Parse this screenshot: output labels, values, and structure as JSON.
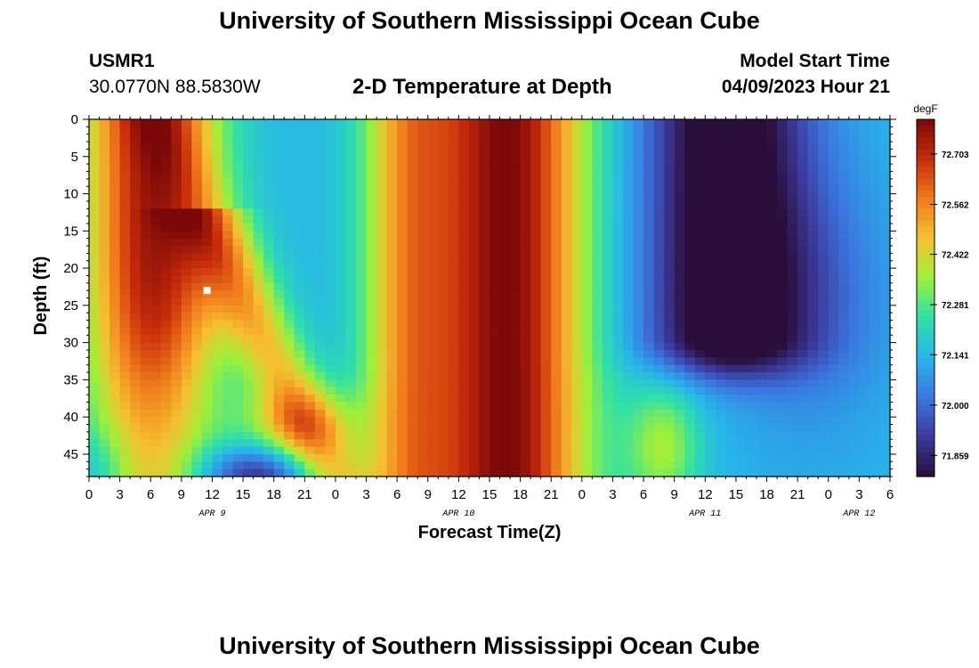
{
  "page": {
    "title": "University of Southern Mississippi Ocean Cube",
    "footer_title": "University of Southern Mississippi Ocean Cube",
    "station_id": "USMR1",
    "coords": "30.0770N  88.5830W",
    "model_start_label": "Model Start Time",
    "model_start_value": "04/09/2023 Hour 21"
  },
  "chart_data": {
    "type": "heatmap",
    "title": "2-D Temperature at Depth",
    "xlabel": "Forecast Time(Z)",
    "ylabel": "Depth (ft)",
    "x_range_hours": [
      0,
      78
    ],
    "x_tick_step_hours": 3,
    "x_tick_labels": [
      "0",
      "3",
      "6",
      "9",
      "12",
      "15",
      "18",
      "21",
      "0",
      "3",
      "6",
      "9",
      "12",
      "15",
      "18",
      "21",
      "0",
      "3",
      "6",
      "9",
      "12",
      "15",
      "18",
      "21",
      "0",
      "3",
      "6"
    ],
    "date_labels": [
      {
        "text": "APR 9",
        "hour": 12
      },
      {
        "text": "APR 10",
        "hour": 36
      },
      {
        "text": "APR 11",
        "hour": 60
      },
      {
        "text": "APR 12",
        "hour": 75
      }
    ],
    "y_range_ft": [
      0,
      48
    ],
    "y_tick_values": [
      0,
      5,
      10,
      15,
      20,
      25,
      30,
      35,
      40,
      45
    ],
    "colorbar": {
      "unit": "degF",
      "min": 71.8,
      "max": 72.8,
      "tick_values": [
        "72.703",
        "72.562",
        "72.422",
        "72.281",
        "72.141",
        "72.000",
        "71.859"
      ],
      "colors": [
        "#2a0e3a",
        "#3b3a9c",
        "#3a78e0",
        "#27b6ea",
        "#2fe0a8",
        "#9cf03a",
        "#f5c130",
        "#f07b1c",
        "#c82c0a",
        "#7a0808"
      ]
    },
    "marker": {
      "hour": 11.5,
      "depth_ft": 23
    }
  }
}
